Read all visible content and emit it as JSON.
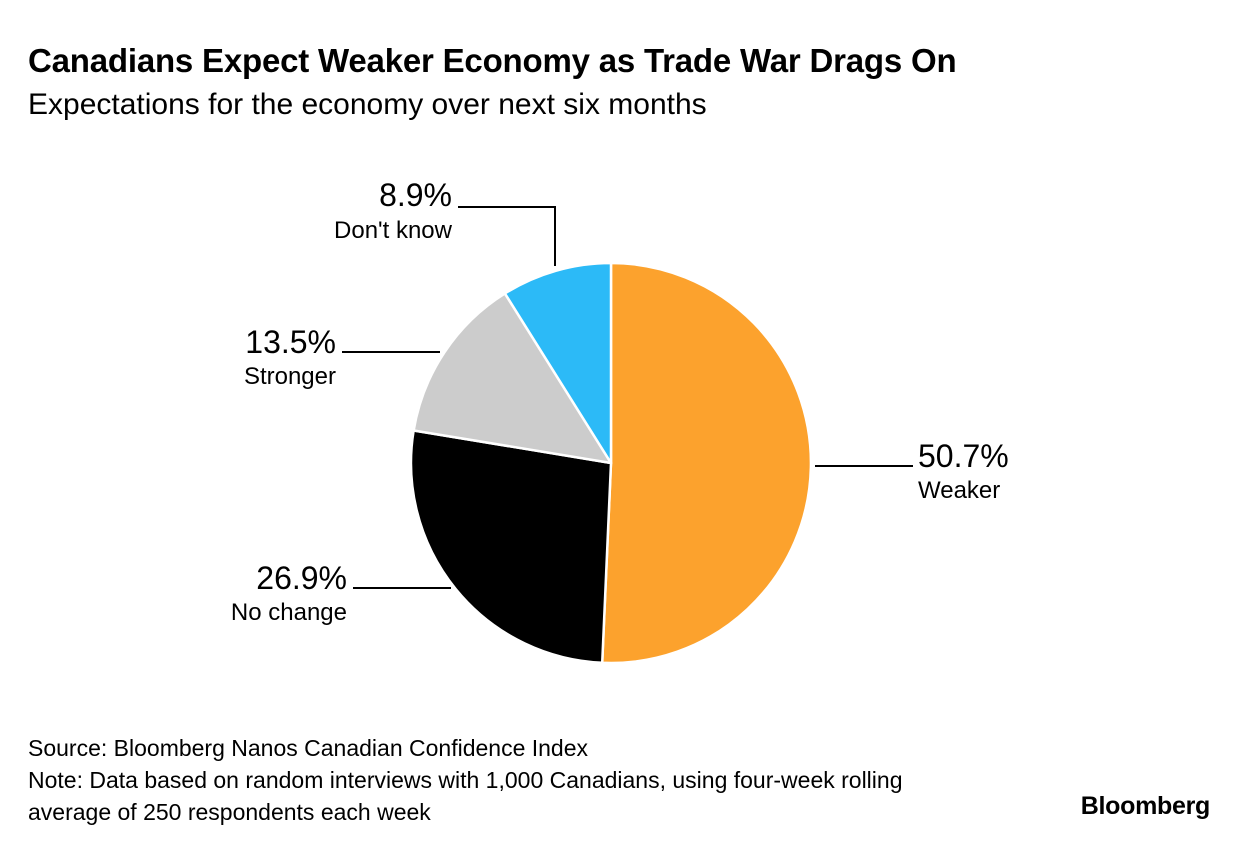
{
  "header": {
    "title": "Canadians Expect Weaker Economy as Trade War Drags On",
    "subtitle": "Expectations for the economy over next six months"
  },
  "footer": {
    "source": "Source: Bloomberg Nanos Canadian Confidence Index",
    "note_line1": "Note: Data based on random interviews with 1,000 Canadians, using four-week rolling",
    "note_line2": "average of 250 respondents each week"
  },
  "brand": {
    "name": "Bloomberg"
  },
  "chart_data": {
    "type": "pie",
    "title": "Canadians Expect Weaker Economy as Trade War Drags On",
    "subtitle": "Expectations for the economy over next six months",
    "slices": [
      {
        "label": "Weaker",
        "value": 50.7,
        "value_label": "50.7%",
        "color": "#fca22d"
      },
      {
        "label": "No change",
        "value": 26.9,
        "value_label": "26.9%",
        "color": "#000000"
      },
      {
        "label": "Stronger",
        "value": 13.5,
        "value_label": "13.5%",
        "color": "#cccccc"
      },
      {
        "label": "Don't know",
        "value": 8.9,
        "value_label": "8.9%",
        "color": "#2cbaf7"
      }
    ]
  }
}
